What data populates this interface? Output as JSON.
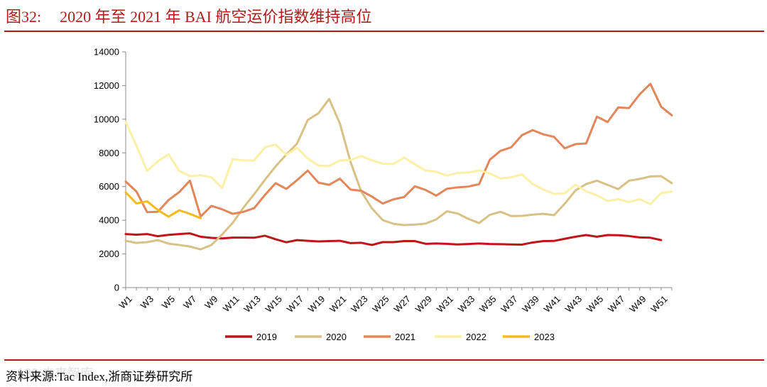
{
  "header": {
    "figure_label": "图32:",
    "title": "2020 年至 2021 年 BAI 航空运价指数维持高位"
  },
  "footer": {
    "source": "资料来源:Tac Index,浙商证券研究所"
  },
  "chart_data": {
    "type": "line",
    "title": "2020 年至 2021 年 BAI 航空运价指数维持高位",
    "xlabel": "",
    "ylabel": "",
    "ylim": [
      0,
      14000
    ],
    "yticks": [
      0,
      2000,
      4000,
      6000,
      8000,
      10000,
      12000,
      14000
    ],
    "x_count": 52,
    "x_tick_labels": [
      "W1",
      "W3",
      "W5",
      "W7",
      "W9",
      "W11",
      "W13",
      "W15",
      "W17",
      "W19",
      "W21",
      "W23",
      "W25",
      "W27",
      "W29",
      "W31",
      "W33",
      "W35",
      "W37",
      "W39",
      "W41",
      "W43",
      "W45",
      "W47",
      "W49",
      "W51"
    ],
    "legend_position": "bottom",
    "series": [
      {
        "name": "2019",
        "color": "#c0151b",
        "values": [
          3180,
          3140,
          3180,
          3050,
          3130,
          3180,
          3220,
          3020,
          2950,
          2920,
          2970,
          2970,
          2960,
          3080,
          2870,
          2690,
          2820,
          2780,
          2740,
          2760,
          2780,
          2640,
          2660,
          2530,
          2700,
          2700,
          2760,
          2760,
          2600,
          2620,
          2600,
          2560,
          2590,
          2620,
          2590,
          2580,
          2560,
          2550,
          2680,
          2760,
          2770,
          2900,
          3020,
          3120,
          3020,
          3120,
          3110,
          3060,
          2980,
          2960,
          2820,
          null
        ]
      },
      {
        "name": "2020",
        "color": "#d8c184",
        "values": [
          2780,
          2650,
          2700,
          2820,
          2610,
          2530,
          2440,
          2270,
          2530,
          3150,
          3850,
          4750,
          5550,
          6400,
          7200,
          7900,
          8550,
          9950,
          10350,
          11200,
          9750,
          7450,
          5700,
          4700,
          4010,
          3790,
          3710,
          3740,
          3800,
          4050,
          4530,
          4400,
          4080,
          3830,
          4320,
          4500,
          4250,
          4260,
          4330,
          4380,
          4300,
          4980,
          5770,
          6150,
          6350,
          6100,
          5850,
          6350,
          6450,
          6600,
          6620,
          6200
        ]
      },
      {
        "name": "2021",
        "color": "#e3875a",
        "values": [
          6300,
          5710,
          4480,
          4500,
          5200,
          5670,
          6350,
          4220,
          4850,
          4650,
          4380,
          4500,
          4720,
          5500,
          6200,
          5860,
          6380,
          6950,
          6230,
          6100,
          6470,
          5820,
          5750,
          5400,
          4990,
          5240,
          5380,
          6010,
          5800,
          5460,
          5870,
          5950,
          6000,
          6140,
          7590,
          8120,
          8330,
          9050,
          9350,
          9100,
          8950,
          8270,
          8520,
          8560,
          10150,
          9830,
          10700,
          10660,
          11480,
          12100,
          10740,
          10230
        ]
      },
      {
        "name": "2022",
        "color": "#fbf0a6",
        "values": [
          9830,
          8420,
          6930,
          7500,
          7920,
          6930,
          6620,
          6670,
          6550,
          5910,
          7630,
          7550,
          7550,
          8330,
          8490,
          7880,
          8300,
          7660,
          7250,
          7220,
          7550,
          7580,
          7810,
          7560,
          7360,
          7340,
          7720,
          7330,
          6950,
          6880,
          6650,
          6810,
          6830,
          6960,
          6780,
          6480,
          6550,
          6720,
          6150,
          5820,
          5560,
          5600,
          6110,
          5720,
          5480,
          5140,
          5250,
          5080,
          5250,
          4960,
          5610,
          5710
        ]
      },
      {
        "name": "2023",
        "color": "#f5bb1b",
        "values": [
          5660,
          5000,
          5120,
          4610,
          4210,
          4590,
          4380,
          4120,
          null,
          null,
          null,
          null,
          null,
          null,
          null,
          null,
          null,
          null,
          null,
          null,
          null,
          null,
          null,
          null,
          null,
          null,
          null,
          null,
          null,
          null,
          null,
          null,
          null,
          null,
          null,
          null,
          null,
          null,
          null,
          null,
          null,
          null,
          null,
          null,
          null,
          null,
          null,
          null,
          null,
          null,
          null,
          null
        ]
      }
    ]
  },
  "watermark": {
    "text": "180 未来智库"
  }
}
